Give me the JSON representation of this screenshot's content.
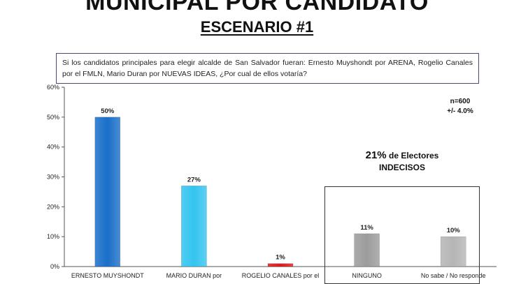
{
  "header": {
    "title": "MUNICIPAL POR CANDIDATO",
    "scenario": "ESCENARIO #1"
  },
  "question": "Si los candidatos principales para elegir alcalde de San Salvador fueran: Ernesto Muyshondt por ARENA, Rogelio Canales por el FMLN, Mario Duran por NUEVAS IDEAS, ¿Por cual de ellos votaría?",
  "sample": {
    "n": "n=600",
    "margin": "+/- 4.0%"
  },
  "undecided": {
    "pct": "21%",
    "line1_rest": " de Electores",
    "line2": "INDECISOS"
  },
  "chart_data": {
    "type": "bar",
    "categories": [
      "ERNESTO MUYSHONDT",
      "MARIO DURAN por",
      "ROGELIO CANALES por el",
      "NINGUNO",
      "No sabe / No responde"
    ],
    "values": [
      50,
      27,
      1,
      11,
      10
    ],
    "value_labels": [
      "50%",
      "27%",
      "1%",
      "11%",
      "10%"
    ],
    "bar_colors": [
      "#1a6fc9",
      "#33c4f0",
      "#e01818",
      "#9c9c9c",
      "#b5b5b5"
    ],
    "ylim": [
      0,
      60
    ],
    "yticks": [
      0,
      10,
      20,
      30,
      40,
      50,
      60
    ],
    "ytick_labels": [
      "0%",
      "10%",
      "20%",
      "30%",
      "40%",
      "50%",
      "60%"
    ],
    "grid": false
  }
}
